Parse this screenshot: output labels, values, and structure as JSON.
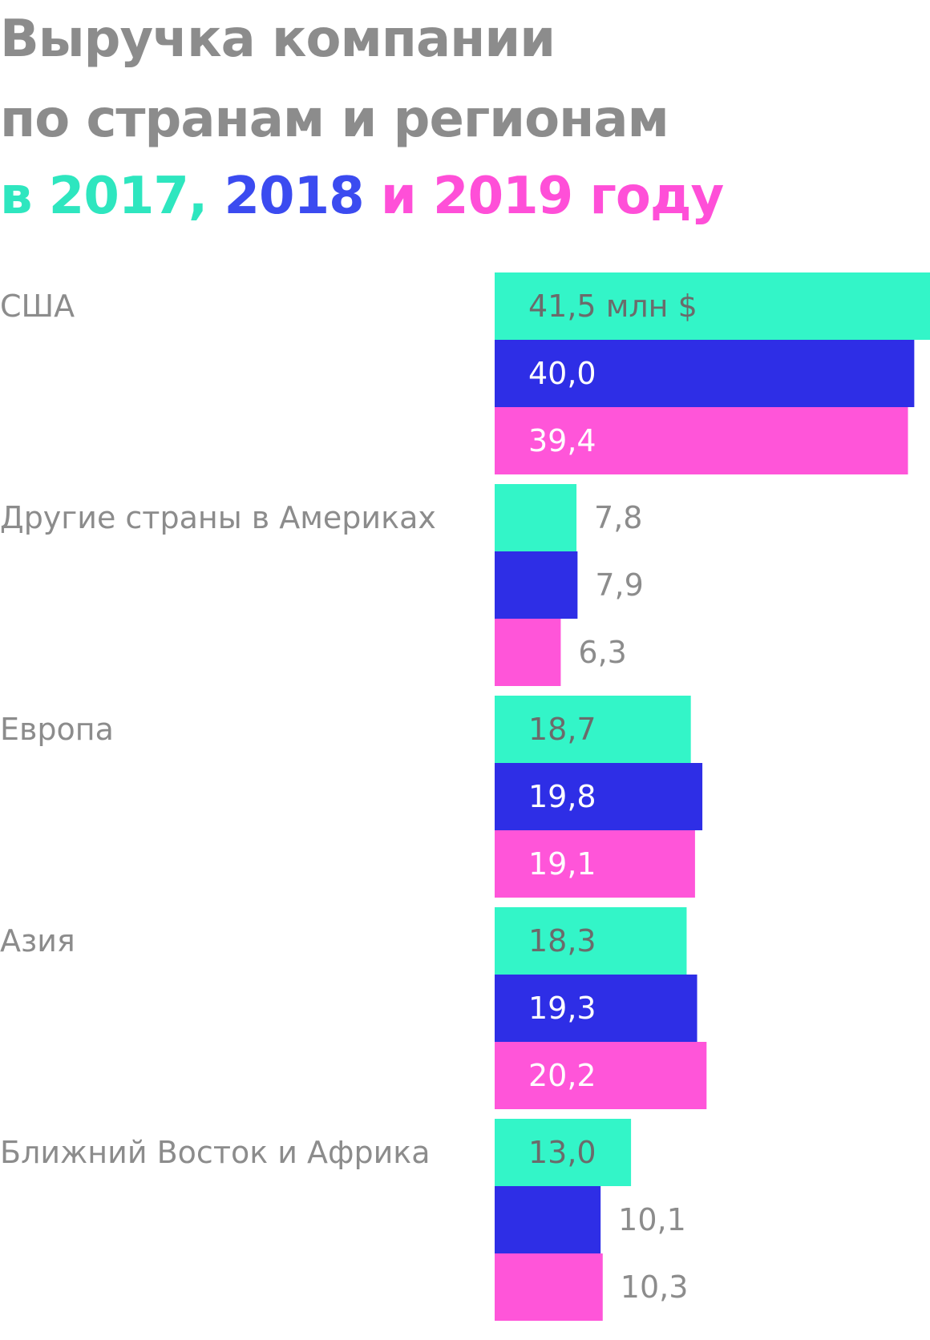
{
  "title": {
    "line1": "Выручка компании",
    "line2": "по странам и регионам",
    "line3": {
      "prefix": "в ",
      "year2017": "2017,",
      "year2018": "2018",
      "and": "и",
      "year2019": "2019 году"
    }
  },
  "colors": {
    "2017": "#33f5c8",
    "2018": "#2e2ee6",
    "2019": "#ff55d9",
    "label_gray": "#8c8c8c"
  },
  "chart_data": {
    "type": "bar",
    "orientation": "horizontal",
    "categories": [
      "США",
      "Другие страны в Америках",
      "Европа",
      "Азия",
      "Ближний Восток и Африка"
    ],
    "series": [
      {
        "name": "2017",
        "values": [
          41.5,
          7.8,
          18.7,
          18.3,
          13.0
        ]
      },
      {
        "name": "2018",
        "values": [
          40.0,
          7.9,
          19.8,
          19.3,
          10.1
        ]
      },
      {
        "name": "2019",
        "values": [
          39.4,
          6.3,
          19.1,
          20.2,
          10.3
        ]
      }
    ],
    "value_labels": [
      [
        "41,5 млн $",
        "40,0",
        "39,4"
      ],
      [
        "7,8",
        "7,9",
        "6,3"
      ],
      [
        "18,7",
        "19,8",
        "19,1"
      ],
      [
        "18,3",
        "19,3",
        "20,2"
      ],
      [
        "13,0",
        "10,1",
        "10,3"
      ]
    ],
    "unit": "млн $",
    "xlim": [
      0,
      41.5
    ],
    "grid": false,
    "legend": "title"
  }
}
